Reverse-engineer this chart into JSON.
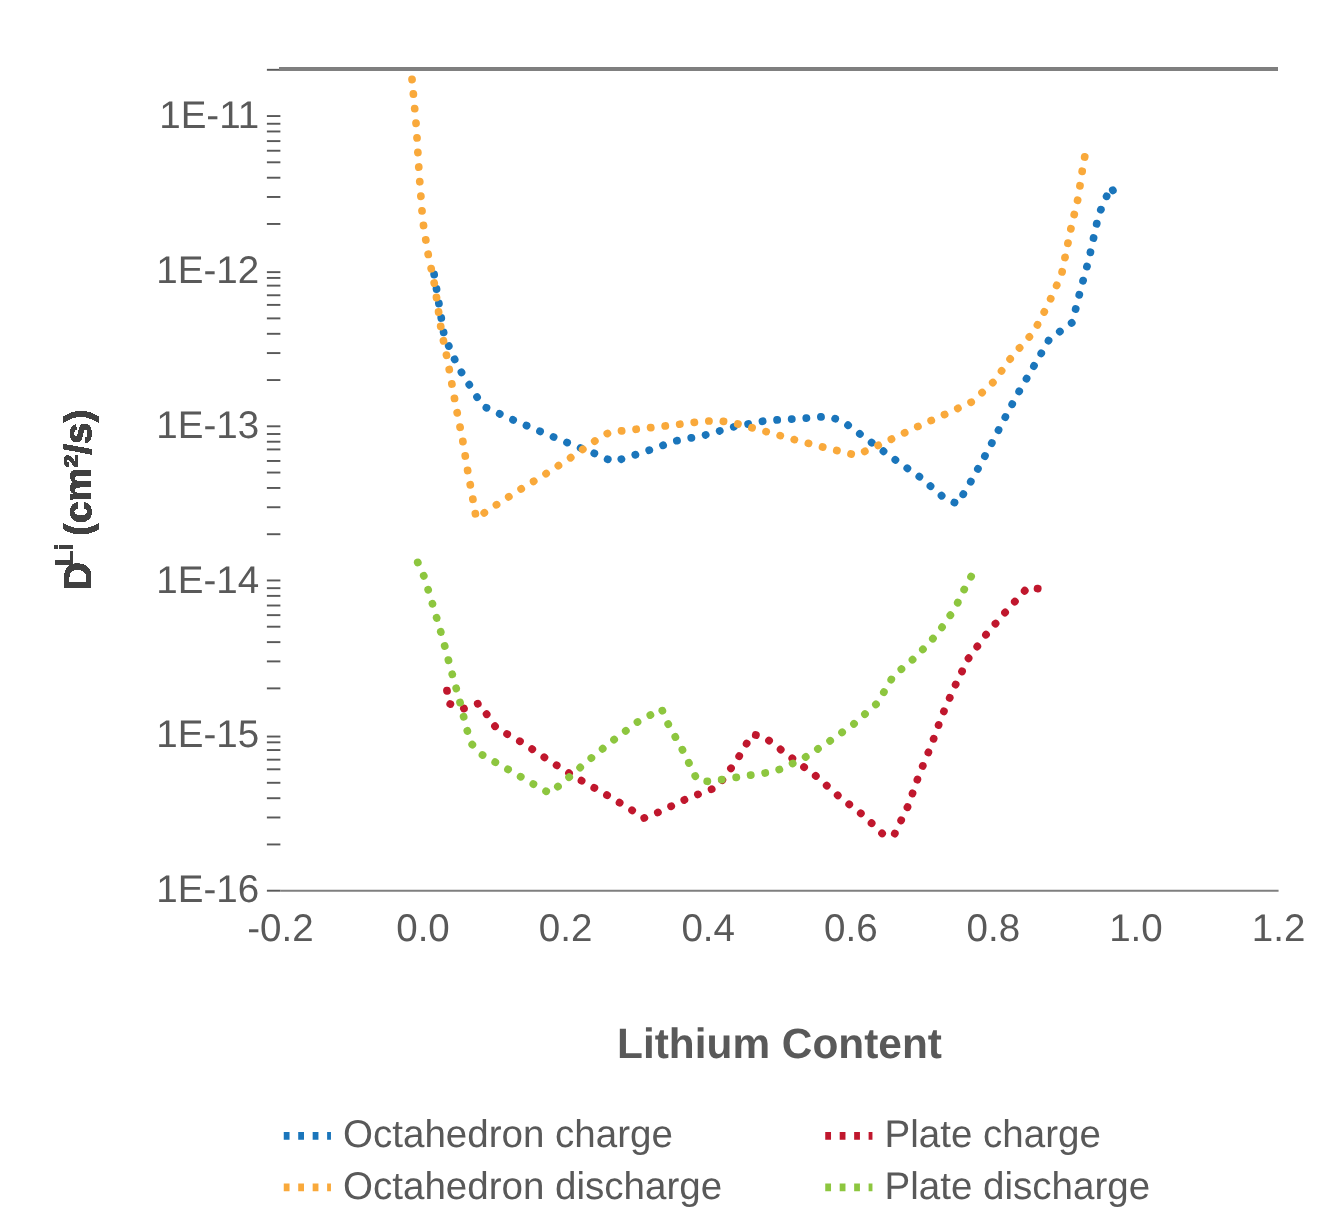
{
  "chart_data": {
    "type": "line",
    "xlabel": "Lithium Content",
    "ylabel": "D$^{Li}$(cm²/s)",
    "log": "y",
    "grid": false,
    "legend": "bottom",
    "line_style": "dotted",
    "xlim": [
      -0.2,
      1.2
    ],
    "xticks": [
      -0.2,
      {
        "value": 0,
        "label": "0.0"
      },
      0.2,
      0.4,
      0.6,
      0.8,
      {
        "value": 1,
        "label": "1.0"
      },
      1.2
    ],
    "ylim": [
      1e-16,
      2e-11
    ],
    "yticks": [
      {
        "value": 1e-16,
        "label": "1E-16"
      },
      {
        "value": 2e-16,
        "label": null
      },
      {
        "value": 3e-16,
        "label": null
      },
      {
        "value": 4e-16,
        "label": null
      },
      {
        "value": 5e-16,
        "label": null
      },
      {
        "value": 6e-16,
        "label": null
      },
      {
        "value": 7e-16,
        "label": null
      },
      {
        "value": 8e-16,
        "label": null
      },
      {
        "value": 9e-16,
        "label": null
      },
      {
        "value": 1e-15,
        "label": "1E-15"
      },
      {
        "value": 2e-15,
        "label": null
      },
      {
        "value": 3e-15,
        "label": null
      },
      {
        "value": 4e-15,
        "label": null
      },
      {
        "value": 5e-15,
        "label": null
      },
      {
        "value": 6e-15,
        "label": null
      },
      {
        "value": 7e-15,
        "label": null
      },
      {
        "value": 8e-15,
        "label": null
      },
      {
        "value": 9e-15,
        "label": null
      },
      {
        "value": 1e-14,
        "label": "1E-14"
      },
      {
        "value": 2e-14,
        "label": null
      },
      {
        "value": 3e-14,
        "label": null
      },
      {
        "value": 4e-14,
        "label": null
      },
      {
        "value": 5e-14,
        "label": null
      },
      {
        "value": 6e-14,
        "label": null
      },
      {
        "value": 7e-14,
        "label": null
      },
      {
        "value": 8e-14,
        "label": null
      },
      {
        "value": 9e-14,
        "label": null
      },
      {
        "value": 1e-13,
        "label": "1E-13"
      },
      {
        "value": 2e-13,
        "label": null
      },
      {
        "value": 3e-13,
        "label": null
      },
      {
        "value": 4e-13,
        "label": null
      },
      {
        "value": 5e-13,
        "label": null
      },
      {
        "value": 6e-13,
        "label": null
      },
      {
        "value": 7e-13,
        "label": null
      },
      {
        "value": 8e-13,
        "label": null
      },
      {
        "value": 9e-13,
        "label": null
      },
      {
        "value": 1e-12,
        "label": "1E-12"
      },
      {
        "value": 2e-12,
        "label": null
      },
      {
        "value": 3e-12,
        "label": null
      },
      {
        "value": 4e-12,
        "label": null
      },
      {
        "value": 5e-12,
        "label": null
      },
      {
        "value": 6e-12,
        "label": null
      },
      {
        "value": 7e-12,
        "label": null
      },
      {
        "value": 8e-12,
        "label": null
      },
      {
        "value": 9e-12,
        "label": null
      },
      {
        "value": 1e-11,
        "label": "1E-11"
      },
      {
        "value": 2e-11,
        "label": null
      }
    ],
    "series": [
      {
        "name": "Octahedron charge",
        "color": "#1a75bb",
        "x": [
          0.017,
          0.031,
          0.05,
          0.085,
          0.124,
          0.166,
          0.207,
          0.248,
          0.268,
          0.311,
          0.355,
          0.396,
          0.439,
          0.482,
          0.527,
          0.57,
          0.59,
          0.626,
          0.661,
          0.699,
          0.732,
          0.751,
          0.772,
          0.794,
          0.815,
          0.835,
          0.858,
          0.88,
          0.912,
          0.923,
          0.935,
          0.949,
          0.966,
          0.974
        ],
        "values": [
          9.4e-13,
          3.8e-13,
          2.4e-13,
          1.33e-13,
          1.1e-13,
          9.1e-14,
          7.6e-14,
          6.4e-14,
          5.8e-14,
          6.7e-14,
          7.9e-14,
          8.6e-14,
          9.8e-14,
          1.07e-13,
          1.1e-13,
          1.14e-13,
          1.06e-13,
          8e-14,
          6.1e-14,
          4.6e-14,
          3.4e-14,
          3.1e-14,
          4.5e-14,
          6.9e-14,
          1.06e-13,
          1.58e-13,
          2.4e-13,
          3.6e-13,
          4.6e-13,
          7.3e-13,
          1.16e-12,
          2.28e-12,
          3.47e-12,
          2.99e-12
        ]
      },
      {
        "name": "Plate charge",
        "color": "#c0172d",
        "x": [
          0.035,
          0.037,
          0.057,
          0.08,
          0.104,
          0.141,
          0.179,
          0.216,
          0.255,
          0.293,
          0.311,
          0.334,
          0.373,
          0.414,
          0.441,
          0.463,
          0.48,
          0.515,
          0.551,
          0.585,
          0.62,
          0.65,
          0.663,
          0.682,
          0.697,
          0.714,
          0.729,
          0.747,
          0.766,
          0.792,
          0.822,
          0.85,
          0.871
        ],
        "values": [
          1.93e-15,
          1.6e-15,
          1.47e-15,
          1.6e-15,
          1.11e-15,
          8.9e-16,
          6.8e-16,
          5.3e-16,
          4.2e-16,
          3.3e-16,
          2.9e-16,
          3.2e-16,
          3.9e-16,
          4.6e-16,
          6.8e-16,
          1.01e-15,
          9.7e-16,
          7.3e-16,
          5.5e-16,
          4e-16,
          3e-16,
          2.2e-16,
          2.3e-16,
          3.5e-16,
          5.5e-16,
          8.5e-16,
          1.32e-15,
          2.05e-15,
          3.1e-15,
          4.5e-15,
          6.5e-15,
          9e-15,
          8.7e-15
        ]
      },
      {
        "name": "Octahedron discharge",
        "color": "#f9a93b",
        "x": [
          -0.014,
          -0.008,
          -0.004,
          0.001,
          0.008,
          0.018,
          0.027,
          0.036,
          0.048,
          0.057,
          0.064,
          0.072,
          0.076,
          0.094,
          0.132,
          0.169,
          0.207,
          0.244,
          0.263,
          0.308,
          0.351,
          0.394,
          0.416,
          0.439,
          0.482,
          0.525,
          0.568,
          0.609,
          0.648,
          0.689,
          0.731,
          0.772,
          0.802,
          0.828,
          0.858,
          0.878,
          0.897,
          0.91,
          0.92,
          0.927,
          0.931
        ],
        "values": [
          1.71e-11,
          8.5e-12,
          4.2e-12,
          2.1e-12,
          1.31e-12,
          7.9e-13,
          4.1e-13,
          2.6e-13,
          1.29e-13,
          8e-14,
          5.1e-14,
          3.2e-14,
          2.5e-14,
          2.85e-14,
          3.7e-14,
          4.7e-14,
          6.1e-14,
          8e-14,
          9e-14,
          9.5e-14,
          1e-13,
          1.06e-13,
          1.07e-13,
          1.03e-13,
          9.1e-14,
          8e-14,
          7.1e-14,
          6.4e-14,
          7.7e-14,
          9.5e-14,
          1.16e-13,
          1.42e-13,
          1.91e-13,
          2.8e-13,
          4e-13,
          6e-13,
          9.4e-13,
          1.85e-12,
          2.9e-12,
          4.7e-12,
          5.9e-12
        ]
      },
      {
        "name": "Plate discharge",
        "color": "#8dc63f",
        "x": [
          -0.006,
          0.003,
          0.016,
          0.029,
          0.04,
          0.052,
          0.063,
          0.07,
          0.083,
          0.123,
          0.16,
          0.179,
          0.197,
          0.231,
          0.265,
          0.302,
          0.336,
          0.345,
          0.366,
          0.386,
          0.403,
          0.45,
          0.495,
          0.534,
          0.57,
          0.605,
          0.639,
          0.661,
          0.693,
          0.723,
          0.747,
          0.766,
          0.777
        ],
        "values": [
          1.3e-14,
          1.05e-14,
          6.7e-15,
          4.2e-15,
          2.7e-15,
          1.71e-15,
          1.08e-15,
          8.7e-16,
          7.5e-16,
          5.9e-16,
          4.7e-16,
          4.2e-16,
          4.9e-16,
          6.7e-16,
          9e-16,
          1.21e-15,
          1.47e-15,
          1.18e-15,
          7.9e-16,
          5.1e-16,
          5e-16,
          5.4e-16,
          5.8e-16,
          7e-16,
          9e-16,
          1.17e-15,
          1.61e-15,
          2.4e-15,
          3.2e-15,
          4.5e-15,
          6.5e-15,
          9.8e-15,
          1.19e-14
        ]
      }
    ]
  }
}
